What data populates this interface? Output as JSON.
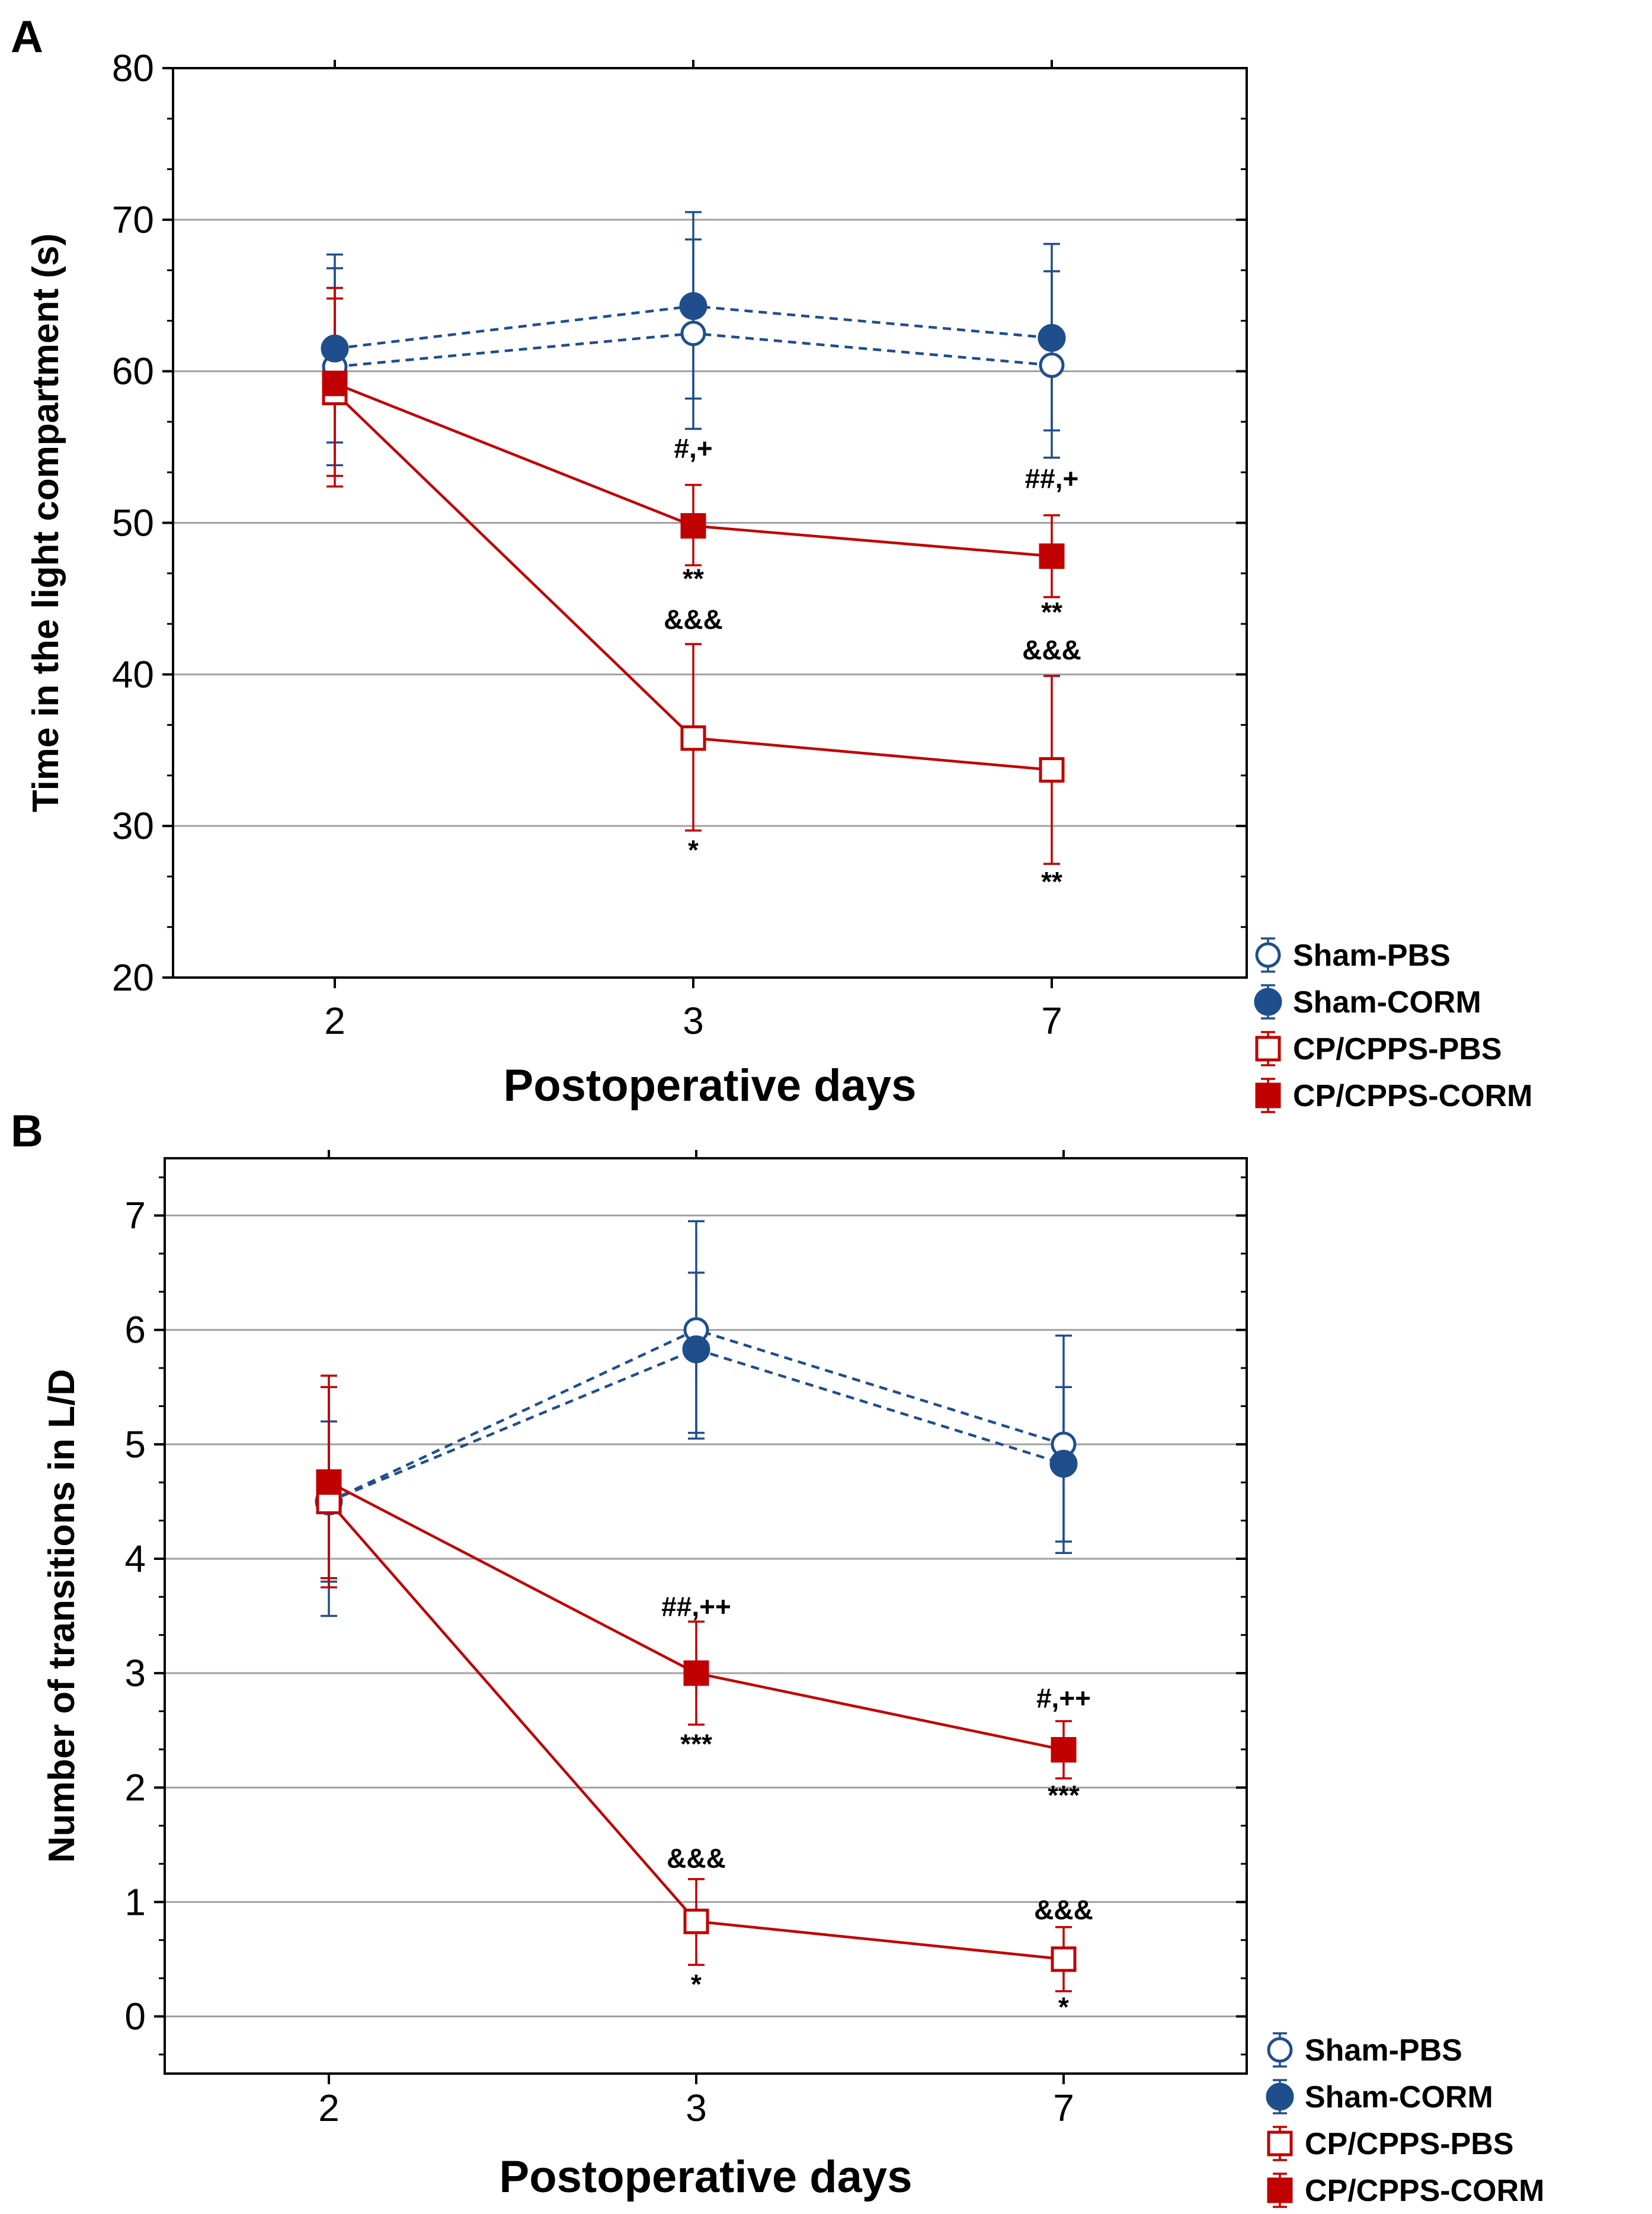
{
  "panel_labels": [
    "A",
    "B"
  ],
  "colors": {
    "sham": "#1f4e8c",
    "cp": "#c00000",
    "grid": "#a0a0a0",
    "axis": "#000000"
  },
  "chart_data": [
    {
      "type": "line",
      "panel": "A",
      "title": "",
      "xlabel": "Postoperative days",
      "ylabel": "Time in the light compartment (s)",
      "categories": [
        "2",
        "3",
        "7"
      ],
      "ylim": [
        20,
        80
      ],
      "yticks": [
        20,
        30,
        40,
        50,
        60,
        70,
        80
      ],
      "grid": true,
      "legend_position": "right-bottom",
      "series": [
        {
          "name": "Sham-PBS",
          "marker": "circle-open",
          "color_key": "sham",
          "linestyle": "dashed",
          "values": [
            60.3,
            62.5,
            60.4
          ],
          "err_low": [
            53.8,
            56.2,
            54.3
          ],
          "err_high": [
            66.8,
            68.7,
            66.6
          ]
        },
        {
          "name": "Sham-CORM",
          "marker": "circle-filled",
          "color_key": "sham",
          "linestyle": "dashed",
          "values": [
            61.5,
            64.3,
            62.2
          ],
          "err_low": [
            55.3,
            58.2,
            56.1
          ],
          "err_high": [
            67.7,
            70.5,
            68.4
          ]
        },
        {
          "name": "CP/CPPS-PBS",
          "marker": "square-open",
          "color_key": "cp",
          "linestyle": "solid",
          "values": [
            58.6,
            35.8,
            33.7
          ],
          "err_low": [
            52.4,
            29.7,
            27.5
          ],
          "err_high": [
            64.8,
            42.0,
            39.9
          ]
        },
        {
          "name": "CP/CPPS-CORM",
          "marker": "square-filled",
          "color_key": "cp",
          "linestyle": "solid",
          "values": [
            59.2,
            49.8,
            47.8
          ],
          "err_low": [
            53.1,
            47.2,
            45.1
          ],
          "err_high": [
            65.5,
            52.5,
            50.5
          ]
        }
      ],
      "annotations": [
        {
          "text": "#,+",
          "x": "3",
          "y": 54.3
        },
        {
          "text": "**",
          "x": "3",
          "y": 45.7
        },
        {
          "text": "&&&",
          "x": "3",
          "y": 43.0
        },
        {
          "text": "*",
          "x": "3",
          "y": 27.8
        },
        {
          "text": "##,+",
          "x": "7",
          "y": 52.3
        },
        {
          "text": "**",
          "x": "7",
          "y": 43.5
        },
        {
          "text": "&&&",
          "x": "7",
          "y": 41.0
        },
        {
          "text": "**",
          "x": "7",
          "y": 25.7
        }
      ]
    },
    {
      "type": "line",
      "panel": "B",
      "title": "",
      "xlabel": "Postoperative days",
      "ylabel": "Number of transitions in L/D",
      "categories": [
        "2",
        "3",
        "7"
      ],
      "ylim": [
        -0.5,
        7.5
      ],
      "yticks": [
        0,
        1,
        2,
        3,
        4,
        5,
        6,
        7
      ],
      "grid": true,
      "legend_position": "right-bottom",
      "series": [
        {
          "name": "Sham-PBS",
          "marker": "circle-open",
          "color_key": "sham",
          "linestyle": "dashed",
          "values": [
            4.5,
            6.0,
            5.0
          ],
          "err_low": [
            3.8,
            5.05,
            4.05
          ],
          "err_high": [
            5.2,
            6.95,
            5.95
          ]
        },
        {
          "name": "Sham-CORM",
          "marker": "circle-filled",
          "color_key": "sham",
          "linestyle": "dashed",
          "values": [
            4.5,
            5.83,
            4.83
          ],
          "err_low": [
            3.5,
            5.1,
            4.15
          ],
          "err_high": [
            5.5,
            6.5,
            5.5
          ]
        },
        {
          "name": "CP/CPPS-PBS",
          "marker": "square-open",
          "color_key": "cp",
          "linestyle": "solid",
          "values": [
            4.5,
            0.83,
            0.5
          ],
          "err_low": [
            3.83,
            0.45,
            0.22
          ],
          "err_high": [
            5.6,
            1.2,
            0.78
          ]
        },
        {
          "name": "CP/CPPS-CORM",
          "marker": "square-filled",
          "color_key": "cp",
          "linestyle": "solid",
          "values": [
            4.67,
            3.0,
            2.33
          ],
          "err_low": [
            3.75,
            2.55,
            2.08
          ],
          "err_high": [
            5.5,
            3.45,
            2.58
          ]
        }
      ],
      "annotations": [
        {
          "text": "##,++",
          "x": "3",
          "y": 3.5
        },
        {
          "text": "***",
          "x": "3",
          "y": 2.3
        },
        {
          "text": "&&&",
          "x": "3",
          "y": 1.3
        },
        {
          "text": "*",
          "x": "3",
          "y": 0.2
        },
        {
          "text": "#,++",
          "x": "7",
          "y": 2.7
        },
        {
          "text": "***",
          "x": "7",
          "y": 1.85
        },
        {
          "text": "&&&",
          "x": "7",
          "y": 0.85
        },
        {
          "text": "*",
          "x": "7",
          "y": 0.0
        }
      ]
    }
  ]
}
